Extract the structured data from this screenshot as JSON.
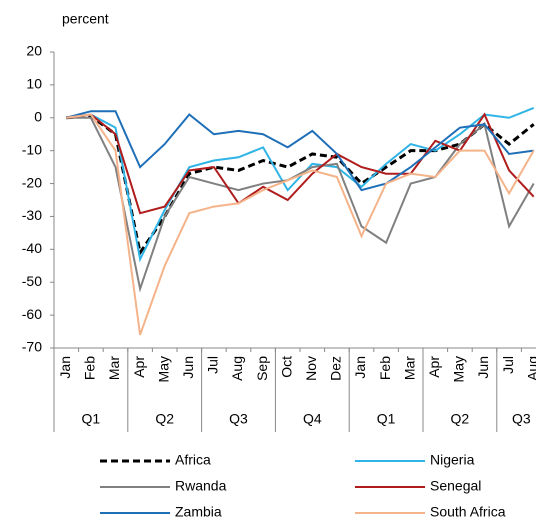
{
  "chart_data": {
    "type": "line",
    "ylabel": "percent",
    "categories": [
      "Jan",
      "Feb",
      "Mar",
      "Apr",
      "May",
      "Jun",
      "Jul",
      "Aug",
      "Sep",
      "Oct",
      "Nov",
      "Dez",
      "Jan",
      "Feb",
      "Mar",
      "Apr",
      "May",
      "Jun",
      "Jul",
      "Aug"
    ],
    "groups": [
      {
        "label": "Q1",
        "span": 3
      },
      {
        "label": "Q2",
        "span": 3
      },
      {
        "label": "Q3",
        "span": 3
      },
      {
        "label": "Q4",
        "span": 3
      },
      {
        "label": "Q1",
        "span": 3
      },
      {
        "label": "Q2",
        "span": 3
      },
      {
        "label": "Q3",
        "span": 2
      }
    ],
    "ylim": [
      -70,
      20
    ],
    "yticks": [
      -70,
      -60,
      -50,
      -40,
      -30,
      -20,
      -10,
      0,
      10,
      20
    ],
    "series": [
      {
        "name": "Africa",
        "color": "#000000",
        "dashed": true,
        "values": [
          0,
          0.5,
          -5,
          -41,
          -30,
          -17,
          -15,
          -16,
          -13,
          -15,
          -11,
          -12,
          -20,
          -15,
          -10,
          -10,
          -8,
          -2,
          -8,
          -2
        ]
      },
      {
        "name": "Nigeria",
        "color": "#2eb4e6",
        "values": [
          0,
          1,
          -3,
          -43,
          -28,
          -15,
          -13,
          -12,
          -9,
          -22,
          -14,
          -15,
          -21,
          -14,
          -8,
          -10,
          -5,
          1,
          0,
          3
        ]
      },
      {
        "name": "Rwanda",
        "color": "#808080",
        "values": [
          0,
          0,
          -15,
          -52,
          -30,
          -18,
          -20,
          -22,
          -20,
          -19,
          -15,
          -14,
          -33,
          -38,
          -20,
          -18,
          -8,
          -2,
          -33,
          -20
        ]
      },
      {
        "name": "Senegal",
        "color": "#b01c1c",
        "values": [
          0,
          1,
          -5,
          -29,
          -27,
          -16,
          -15,
          -26,
          -21,
          -25,
          -17,
          -11,
          -15,
          -17,
          -17,
          -7,
          -10,
          1,
          -16,
          -24
        ]
      },
      {
        "name": "Zambia",
        "color": "#1f6fb8",
        "values": [
          0,
          2,
          2,
          -15,
          -8,
          1,
          -5,
          -4,
          -5,
          -9,
          -4,
          -11,
          -22,
          -20,
          -15,
          -9,
          -3,
          -2,
          -11,
          -10
        ]
      },
      {
        "name": "South Africa",
        "color": "#f5b38a",
        "values": [
          0,
          1,
          -10,
          -66,
          -45,
          -29,
          -27,
          -26,
          -22,
          -19,
          -16,
          -18,
          -36,
          -20,
          -17,
          -18,
          -10,
          -10,
          -23,
          -10
        ]
      }
    ]
  }
}
